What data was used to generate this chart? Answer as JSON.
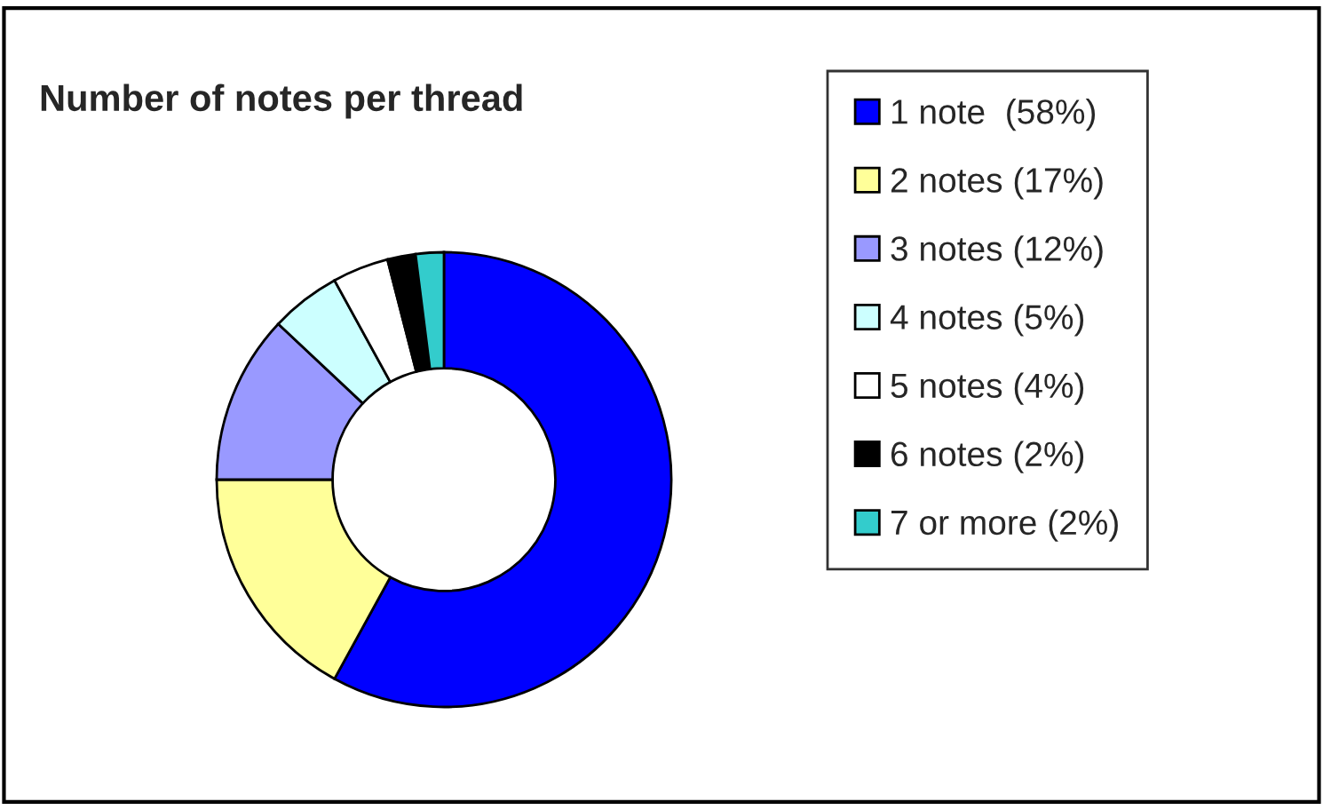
{
  "chart_data": {
    "type": "donut",
    "title": "Number of notes per thread",
    "categories": [
      "1 note  (58%)",
      "2 notes (17%)",
      "3 notes (12%)",
      "4 notes (5%)",
      "5 notes (4%)",
      "6 notes (2%)",
      "7 or more (2%)"
    ],
    "values": [
      58,
      17,
      12,
      5,
      4,
      2,
      2
    ],
    "colors": [
      "#0000ff",
      "#ffff99",
      "#9999ff",
      "#ccffff",
      "#ffffff",
      "#000000",
      "#33cccc"
    ],
    "legend": "right"
  }
}
